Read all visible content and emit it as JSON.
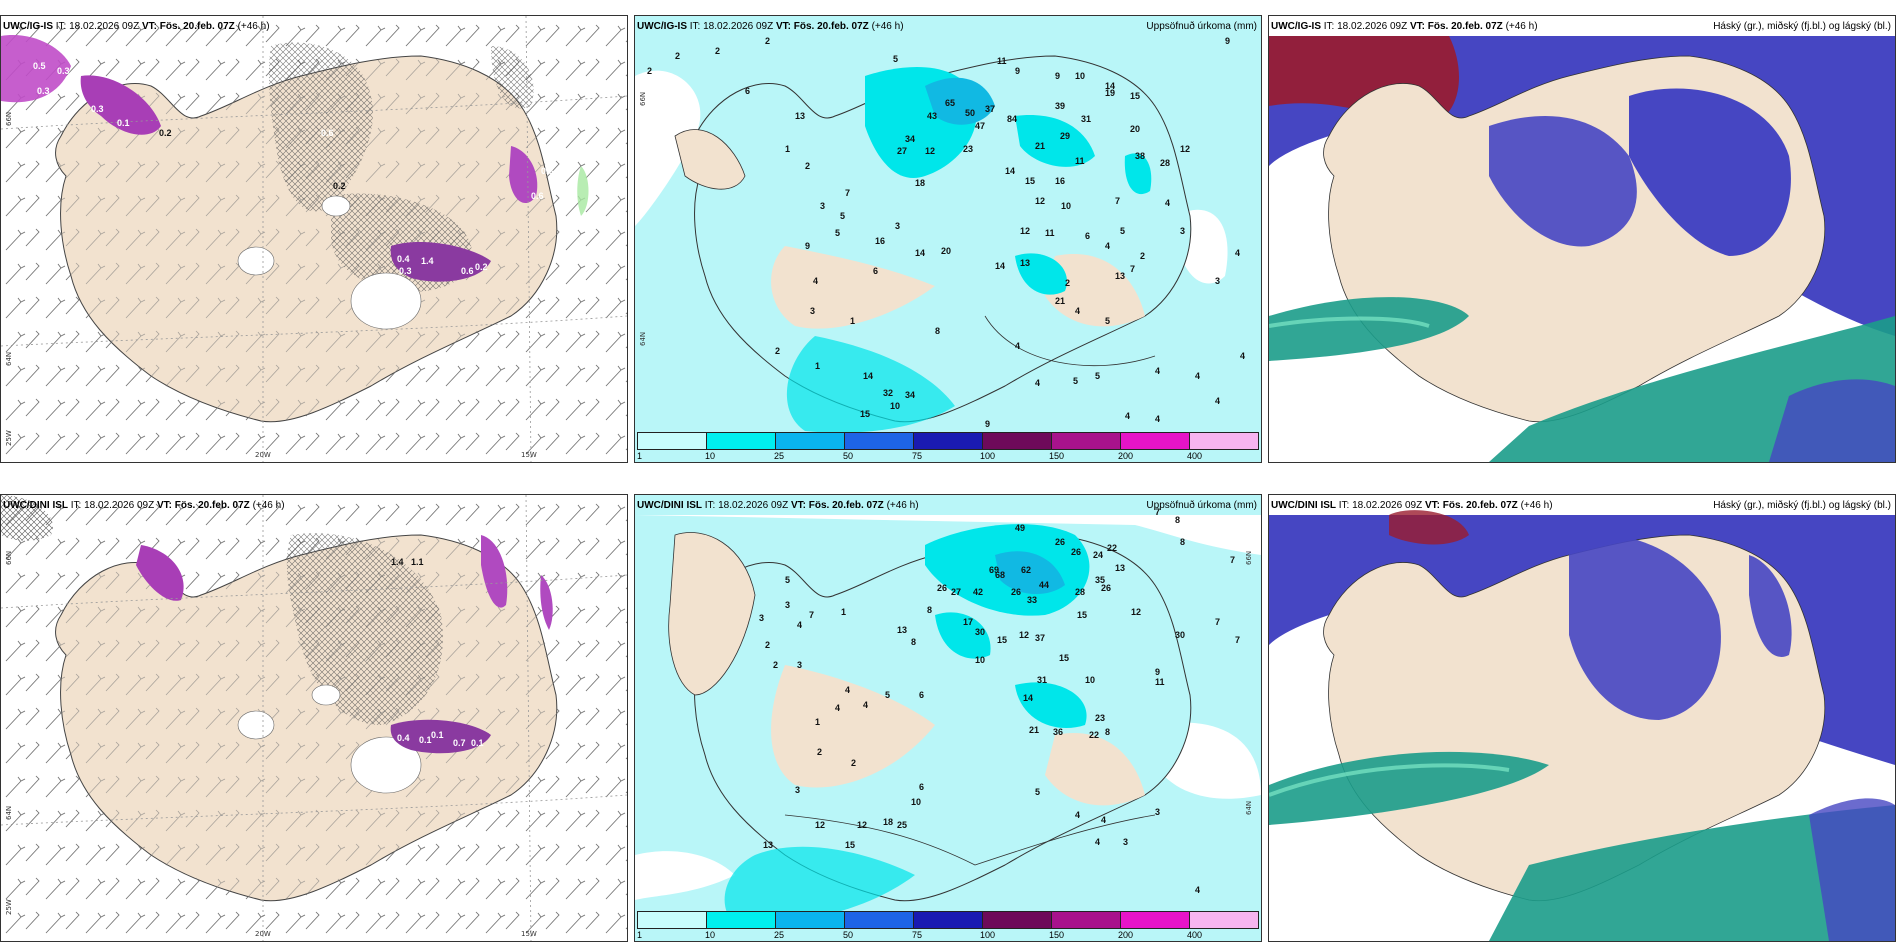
{
  "panels": [
    {
      "id": "top-left",
      "title_model": "UWC/IG-IS",
      "title_it": "IT: 18.02.2026 09Z",
      "title_vt": "VT: Fös. 20.feb. 07Z",
      "title_lead": "(+46 h)",
      "title_right": "",
      "labels": {
        "lat66": "66N",
        "lat64": "64N",
        "lon25": "25W",
        "lon20": "20W",
        "lon15": "15W"
      },
      "values": [
        "0.5",
        "0.3",
        "0.3",
        "0.3",
        "0.1",
        "0.2",
        "0.6",
        "0.2",
        "0.6",
        "0.3",
        "1.4",
        "0.4",
        "0.3",
        "0.6",
        "0.2"
      ]
    },
    {
      "id": "top-middle",
      "title_model": "UWC/IG-IS",
      "title_it": "IT: 18.02.2026 09Z",
      "title_vt": "VT: Fös. 20.feb. 07Z",
      "title_lead": "(+46 h)",
      "title_right": "Uppsöfnuð úrkoma (mm)",
      "labels": {
        "lat66": "66N",
        "lat64": "64N"
      },
      "values": [
        "2",
        "2",
        "2",
        "5",
        "2",
        "9",
        "11",
        "9",
        "9",
        "10",
        "14",
        "6",
        "15",
        "13",
        "65",
        "50",
        "37",
        "47",
        "84",
        "39",
        "31",
        "19",
        "20",
        "11",
        "34",
        "43",
        "29",
        "27",
        "12",
        "23",
        "21",
        "16",
        "38",
        "28",
        "12",
        "1",
        "2",
        "3",
        "7",
        "5",
        "18",
        "14",
        "15",
        "12",
        "10",
        "7",
        "4",
        "5",
        "3",
        "16",
        "12",
        "11",
        "6",
        "4",
        "5",
        "3",
        "9",
        "14",
        "20",
        "14",
        "13",
        "13",
        "7",
        "2",
        "4",
        "6",
        "4",
        "3",
        "1",
        "2",
        "3",
        "21",
        "4",
        "5",
        "8",
        "4",
        "1",
        "2",
        "14",
        "32",
        "34",
        "10",
        "4",
        "5",
        "5",
        "4",
        "15",
        "4",
        "4",
        "4",
        "4",
        "4",
        "9"
      ],
      "legend": [
        "1",
        "10",
        "25",
        "50",
        "75",
        "100",
        "150",
        "200",
        "400"
      ]
    },
    {
      "id": "top-right",
      "title_model": "UWC/IG-IS",
      "title_it": "IT: 18.02.2026 09Z",
      "title_vt": "VT: Fös. 20.feb. 07Z",
      "title_lead": "(+46 h)",
      "title_right": "Háský (gr.), miðský (fj.bl.) og lágský (bl.)"
    },
    {
      "id": "bottom-left",
      "title_model": "UWC/DINI ISL",
      "title_it": "IT: 18.02.2026 09Z",
      "title_vt": "VT: Fös. 20.feb. 07Z",
      "title_lead": "(+46 h)",
      "title_right": "",
      "labels": {
        "lat66": "66N",
        "lat64": "64N",
        "lon25": "25W",
        "lon20": "20W",
        "lon15": "15W"
      },
      "values": [
        "1.4",
        "1.1",
        "0.4",
        "0.1",
        "0.7",
        "0.1",
        "0.1"
      ]
    },
    {
      "id": "bottom-middle",
      "title_model": "UWC/DINI ISL",
      "title_it": "IT: 18.02.2026 09Z",
      "title_vt": "VT: Fös. 20.feb. 07Z",
      "title_lead": "(+46 h)",
      "title_right": "Uppsöfnuð úrkoma (mm)",
      "labels": {
        "lat66": "66N",
        "lat64": "64N"
      },
      "values": [
        "7",
        "8",
        "8",
        "7",
        "49",
        "26",
        "26",
        "24",
        "22",
        "13",
        "69",
        "68",
        "62",
        "44",
        "35",
        "26",
        "27",
        "42",
        "26",
        "33",
        "28",
        "26",
        "15",
        "8",
        "12",
        "7",
        "17",
        "30",
        "37",
        "15",
        "12",
        "30",
        "7",
        "13",
        "8",
        "10",
        "15",
        "31",
        "10",
        "14",
        "9",
        "11",
        "23",
        "21",
        "36",
        "22",
        "8",
        "18",
        "25",
        "10",
        "6",
        "12",
        "12",
        "13",
        "15",
        "5",
        "4",
        "4",
        "3",
        "4",
        "3",
        "3",
        "2",
        "5",
        "6",
        "4",
        "4",
        "4",
        "1",
        "2",
        "2",
        "3",
        "2",
        "3",
        "5",
        "7",
        "1",
        "4",
        "3",
        "4"
      ],
      "legend": [
        "1",
        "10",
        "25",
        "50",
        "75",
        "100",
        "150",
        "200",
        "400"
      ]
    },
    {
      "id": "bottom-right",
      "title_model": "UWC/DINI ISL",
      "title_it": "IT: 18.02.2026 09Z",
      "title_vt": "VT: Fös. 20.feb. 07Z",
      "title_lead": "(+46 h)",
      "title_right": "Háský (gr.), miðský (fj.bl.) og lágský (bl.)"
    }
  ],
  "legend_colors": [
    "#c8fdfd",
    "#00efef",
    "#0ab4ee",
    "#1e64e6",
    "#1a1ab2",
    "#6e0a5a",
    "#a8128c",
    "#e614c8",
    "#f7b4f0"
  ],
  "colors": {
    "land": "#f2e2cf",
    "precip_light": "#b9f6f8",
    "precip_mid": "#00e6ea",
    "precip_dark": "#11b9e3",
    "cloud_low": "#4646c2",
    "cloud_mid": "#1b9c8a",
    "cloud_high": "#9a1b2e",
    "snow_violet": "#a64eb8"
  }
}
